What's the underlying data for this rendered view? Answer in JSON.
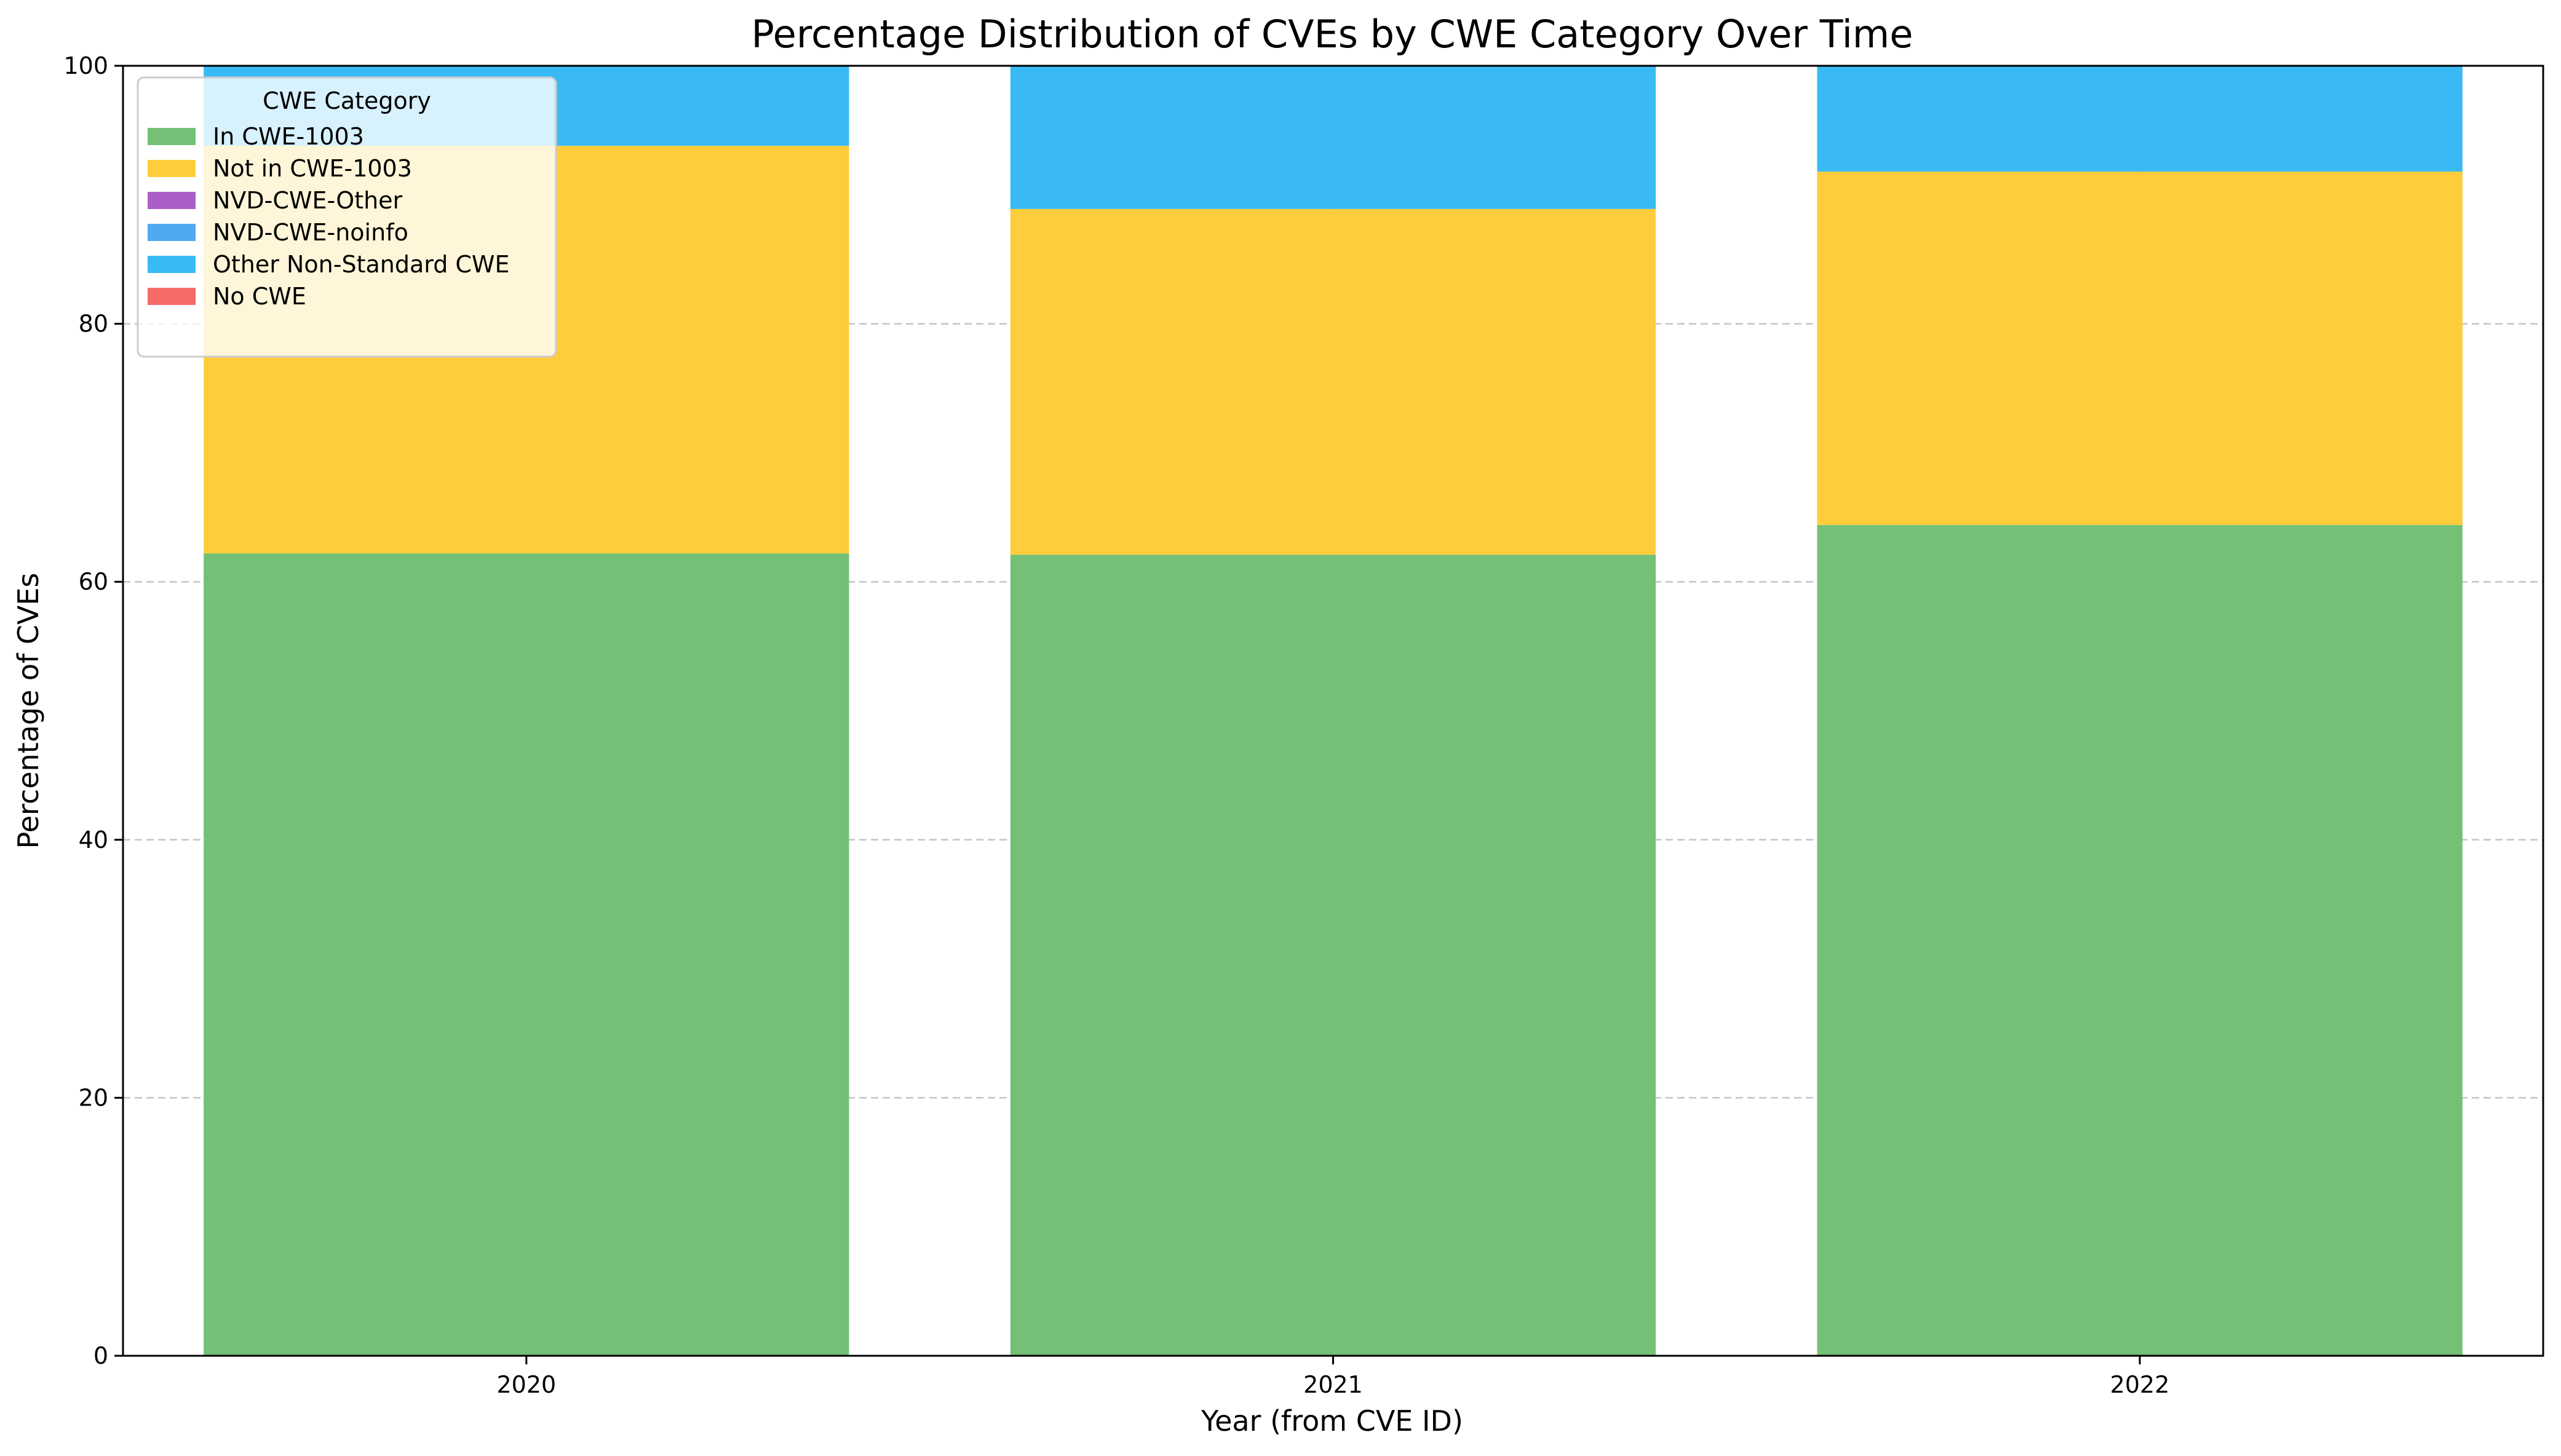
{
  "chart_data": {
    "type": "bar",
    "stacked": true,
    "title": "Percentage Distribution of CVEs by CWE Category Over Time",
    "xlabel": "Year (from CVE ID)",
    "ylabel": "Percentage of CVEs",
    "categories": [
      "2020",
      "2021",
      "2022"
    ],
    "ylim": [
      0,
      100
    ],
    "yticks": [
      "0",
      "20",
      "40",
      "60",
      "80",
      "100"
    ],
    "grid": true,
    "legend": {
      "title": "CWE Category",
      "placement": "top-left"
    },
    "series": [
      {
        "name": "In CWE-1003",
        "color": "#73c076",
        "values": [
          62.2,
          62.1,
          64.4
        ]
      },
      {
        "name": "Not in CWE-1003",
        "color": "#ffcd3c",
        "values": [
          31.6,
          26.8,
          27.4
        ]
      },
      {
        "name": "NVD-CWE-Other",
        "color": "#ab5ec7",
        "values": [
          0,
          0,
          0
        ]
      },
      {
        "name": "NVD-CWE-noinfo",
        "color": "#51a9f2",
        "values": [
          0,
          0,
          0
        ]
      },
      {
        "name": "Other Non-Standard CWE",
        "color": "#39baf5",
        "values": [
          6.2,
          11.1,
          8.2
        ]
      },
      {
        "name": "No CWE",
        "color": "#f66b68",
        "values": [
          0,
          0,
          0
        ]
      }
    ]
  }
}
